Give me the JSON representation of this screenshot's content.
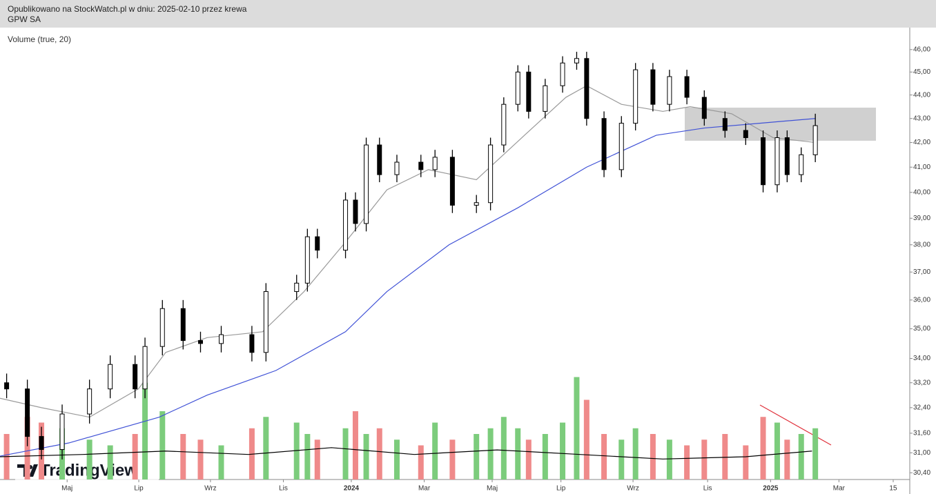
{
  "chart_data": {
    "type": "candlestick",
    "title": "Opublikowano na StockWatch.pl w dniu: 2025-02-10 przez krewa",
    "subtitle": "GPW SA",
    "legend_text": "Volume (true, 20)",
    "logo": "TradingView",
    "log_scale": true,
    "up_color": "#000000",
    "down_color": "#000000",
    "volume_up_color": "#7ccc7c",
    "volume_down_color": "#ef8a8a",
    "x": [
      0.8,
      3.3,
      5,
      7.5,
      10.8,
      13.3,
      16.3,
      17.5,
      19.6,
      22.1,
      24.2,
      26.7,
      30.4,
      32.1,
      35.8,
      37.1,
      38.3,
      41.7,
      42.9,
      44.2,
      45.8,
      47.9,
      50.8,
      52.5,
      54.6,
      57.5,
      59.2,
      60.8,
      62.5,
      63.8,
      65.8,
      67.9,
      69.6,
      70.8,
      72.9,
      75,
      76.7,
      78.8,
      80.8,
      82.9,
      85,
      87.5,
      90,
      92.1,
      93.8,
      95,
      96.7,
      98.4
    ],
    "open": [
      33.2,
      33.0,
      31.5,
      31.1,
      32.2,
      33.0,
      33.8,
      33.0,
      34.4,
      35.7,
      34.6,
      34.5,
      34.8,
      34.2,
      36.3,
      36.6,
      38.3,
      37.8,
      39.7,
      38.8,
      41.9,
      40.7,
      41.2,
      40.9,
      41.4,
      39.5,
      39.6,
      41.9,
      43.6,
      45.0,
      43.3,
      44.4,
      45.4,
      45.6,
      43.0,
      40.9,
      42.8,
      45.1,
      43.6,
      44.8,
      43.9,
      43.0,
      42.5,
      42.2,
      40.3,
      42.2,
      40.7,
      41.5
    ],
    "high": [
      33.5,
      33.3,
      31.8,
      32.5,
      33.3,
      34.1,
      34.1,
      34.7,
      36.0,
      36.0,
      34.9,
      35.1,
      35.1,
      36.6,
      36.9,
      38.6,
      38.6,
      40.0,
      40.0,
      42.2,
      42.2,
      41.5,
      41.5,
      41.7,
      41.7,
      39.9,
      42.2,
      43.9,
      45.3,
      45.3,
      44.7,
      45.7,
      45.9,
      45.9,
      43.3,
      43.1,
      45.4,
      45.4,
      45.1,
      45.1,
      44.2,
      43.3,
      42.8,
      42.5,
      42.5,
      42.5,
      41.8,
      43.2
    ],
    "low": [
      32.7,
      31.2,
      30.8,
      30.8,
      31.9,
      32.7,
      32.7,
      32.7,
      34.1,
      34.3,
      34.2,
      34.2,
      33.9,
      33.9,
      36.0,
      36.3,
      37.5,
      37.5,
      38.5,
      38.5,
      40.4,
      40.4,
      40.6,
      40.6,
      39.2,
      39.2,
      39.3,
      41.6,
      43.3,
      43.0,
      43.0,
      44.1,
      45.1,
      42.7,
      40.6,
      40.6,
      42.5,
      43.3,
      43.3,
      43.6,
      42.7,
      42.2,
      41.9,
      40.0,
      40.0,
      40.4,
      40.4,
      41.2
    ],
    "close": [
      33.0,
      31.5,
      31.1,
      32.2,
      33.0,
      33.8,
      33.0,
      34.4,
      35.7,
      34.6,
      34.5,
      34.8,
      34.2,
      36.3,
      36.6,
      38.3,
      37.8,
      39.7,
      38.8,
      41.9,
      40.7,
      41.2,
      40.9,
      41.4,
      39.5,
      39.6,
      41.9,
      43.6,
      45.0,
      43.3,
      44.4,
      45.4,
      45.6,
      43.0,
      40.9,
      42.8,
      45.1,
      43.6,
      44.8,
      43.9,
      43.0,
      42.5,
      42.2,
      40.3,
      42.2,
      40.7,
      41.5,
      42.7
    ],
    "volume": [
      40,
      55,
      50,
      45,
      35,
      30,
      40,
      85,
      60,
      40,
      35,
      30,
      45,
      55,
      50,
      40,
      35,
      45,
      60,
      40,
      45,
      35,
      30,
      50,
      35,
      40,
      45,
      55,
      45,
      35,
      40,
      50,
      90,
      70,
      40,
      35,
      45,
      40,
      35,
      30,
      35,
      40,
      30,
      55,
      50,
      35,
      40,
      45
    ],
    "volume_lim": [
      0,
      100
    ],
    "volume_ma": {
      "color": "#000000",
      "x": [
        0,
        10,
        20,
        30,
        40,
        50,
        60,
        70,
        80,
        90,
        98
      ],
      "values": [
        20,
        22,
        25,
        22,
        28,
        22,
        26,
        22,
        18,
        20,
        25
      ]
    },
    "moving_averages": [
      {
        "color": "#9a9a9a",
        "x": [
          0,
          5,
          10.8,
          16.7,
          20,
          25,
          31.7,
          36.7,
          41.7,
          46.7,
          51.7,
          57.5,
          63.3,
          68.3,
          70.8,
          75,
          80,
          83.3,
          88.3,
          93.3,
          98.4
        ],
        "values": [
          32.7,
          32.4,
          32.1,
          33.0,
          34.2,
          34.7,
          34.9,
          36.3,
          38.1,
          40.1,
          40.9,
          40.5,
          42.3,
          43.9,
          44.4,
          43.6,
          43.3,
          43.5,
          43.2,
          42.2,
          42.0
        ]
      },
      {
        "color": "#3f51d6",
        "x": [
          0,
          8.3,
          19.2,
          25,
          33.3,
          41.7,
          46.7,
          54.2,
          62.5,
          70.8,
          79.2,
          85,
          91.7,
          98.4
        ],
        "values": [
          30.9,
          31.3,
          32.1,
          32.8,
          33.6,
          34.9,
          36.3,
          38.0,
          39.4,
          41.0,
          42.3,
          42.6,
          42.8,
          43.0
        ]
      }
    ],
    "xlim": [
      0,
      109.8
    ],
    "xticks": [
      {
        "value": 8.1,
        "label": "Maj"
      },
      {
        "value": 16.75,
        "label": "Lip"
      },
      {
        "value": 25.4,
        "label": "Wrz"
      },
      {
        "value": 34.2,
        "label": "Lis"
      },
      {
        "value": 42.4,
        "label": "2024"
      },
      {
        "value": 51.2,
        "label": "Mar"
      },
      {
        "value": 59.4,
        "label": "Maj"
      },
      {
        "value": 67.7,
        "label": "Lip"
      },
      {
        "value": 76.4,
        "label": "Wrz"
      },
      {
        "value": 85.4,
        "label": "Lis"
      },
      {
        "value": 93,
        "label": "2025"
      },
      {
        "value": 101.25,
        "label": "Mar"
      },
      {
        "value": 107.8,
        "label": "15"
      }
    ],
    "ylim": [
      30.2,
      47.0
    ],
    "yticks": [
      {
        "value": 46,
        "label": "46,00"
      },
      {
        "value": 45,
        "label": "45,00"
      },
      {
        "value": 44,
        "label": "44,00"
      },
      {
        "value": 43,
        "label": "43,00"
      },
      {
        "value": 42,
        "label": "42,00"
      },
      {
        "value": 41,
        "label": "41,00"
      },
      {
        "value": 40,
        "label": "40,00"
      },
      {
        "value": 39,
        "label": "39,00"
      },
      {
        "value": 38,
        "label": "38,00"
      },
      {
        "value": 37,
        "label": "37,00"
      },
      {
        "value": 36,
        "label": "36,00"
      },
      {
        "value": 35,
        "label": "35,00"
      },
      {
        "value": 34,
        "label": "34,00"
      },
      {
        "value": 33.2,
        "label": "33,20"
      },
      {
        "value": 32.4,
        "label": "32,40"
      },
      {
        "value": 31.6,
        "label": "31,60"
      },
      {
        "value": 31,
        "label": "31,00"
      },
      {
        "value": 30.4,
        "label": "30,40"
      }
    ]
  }
}
